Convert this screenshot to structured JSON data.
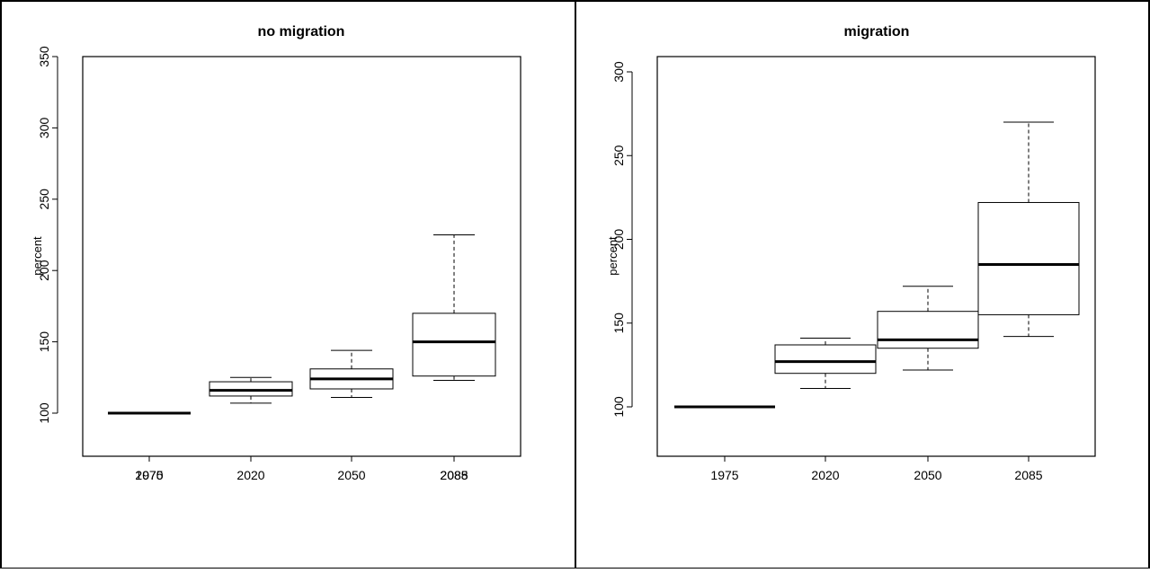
{
  "chart_data": [
    {
      "type": "box",
      "title": "no migration",
      "ylabel": "percent",
      "categories": [
        "1975",
        "2020",
        "2050",
        "2085"
      ],
      "yticks": [
        100,
        150,
        200,
        250,
        300,
        350
      ],
      "ylim": [
        70,
        350
      ],
      "overlapped_xtick_labels": [
        "2070",
        "2088"
      ],
      "boxes": [
        {
          "category": "1975",
          "min": 100,
          "q1": 100,
          "median": 100,
          "q3": 100,
          "max": 100
        },
        {
          "category": "2020",
          "min": 107,
          "q1": 112,
          "median": 116,
          "q3": 122,
          "max": 125
        },
        {
          "category": "2050",
          "min": 111,
          "q1": 117,
          "median": 124,
          "q3": 131,
          "max": 144
        },
        {
          "category": "2085",
          "min": 123,
          "q1": 126,
          "median": 150,
          "q3": 170,
          "max": 225
        }
      ]
    },
    {
      "type": "box",
      "title": "migration",
      "ylabel": "percent",
      "categories": [
        "1975",
        "2020",
        "2050",
        "2085"
      ],
      "yticks": [
        100,
        150,
        200,
        250,
        300
      ],
      "ylim": [
        70,
        310
      ],
      "boxes": [
        {
          "category": "1975",
          "min": 100,
          "q1": 100,
          "median": 100,
          "q3": 100,
          "max": 100
        },
        {
          "category": "2020",
          "min": 111,
          "q1": 120,
          "median": 127,
          "q3": 137,
          "max": 141
        },
        {
          "category": "2050",
          "min": 122,
          "q1": 135,
          "median": 140,
          "q3": 157,
          "max": 172
        },
        {
          "category": "2085",
          "min": 142,
          "q1": 155,
          "median": 185,
          "q3": 222,
          "max": 270
        }
      ]
    }
  ]
}
